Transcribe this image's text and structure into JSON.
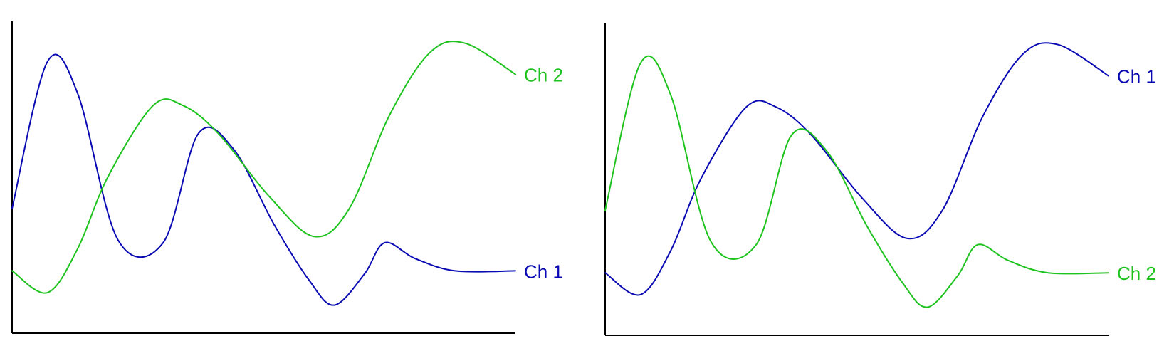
{
  "colors": {
    "ch1": "#0a0ab4",
    "ch2": "#1ec31e",
    "axis": "#000000"
  },
  "chart_data": [
    {
      "type": "line",
      "xlim": [
        0,
        100
      ],
      "ylim": [
        0,
        100
      ],
      "series": [
        {
          "name": "Ch 1",
          "color_key": "ch1",
          "points": [
            [
              0,
              40
            ],
            [
              7,
              87
            ],
            [
              13,
              77
            ],
            [
              21,
              30
            ],
            [
              30,
              29
            ],
            [
              37,
              64
            ],
            [
              44,
              59
            ],
            [
              52,
              35
            ],
            [
              59,
              17
            ],
            [
              64,
              9
            ],
            [
              70,
              19
            ],
            [
              74,
              29
            ],
            [
              80,
              24
            ],
            [
              88,
              20
            ],
            [
              100,
              20
            ]
          ]
        },
        {
          "name": "Ch 2",
          "color_key": "ch2",
          "points": [
            [
              0,
              20
            ],
            [
              7,
              13
            ],
            [
              13,
              27
            ],
            [
              19,
              50
            ],
            [
              28,
              73
            ],
            [
              34,
              73
            ],
            [
              41,
              64
            ],
            [
              51,
              44
            ],
            [
              60,
              31
            ],
            [
              67,
              40
            ],
            [
              75,
              70
            ],
            [
              83,
              90
            ],
            [
              90,
              93
            ],
            [
              100,
              83
            ]
          ]
        }
      ]
    },
    {
      "type": "line",
      "xlim": [
        0,
        100
      ],
      "ylim": [
        0,
        100
      ],
      "series": [
        {
          "name": "Ch 1",
          "color_key": "ch1",
          "points": [
            [
              0,
              20
            ],
            [
              7,
              13
            ],
            [
              13,
              27
            ],
            [
              19,
              50
            ],
            [
              28,
              73
            ],
            [
              34,
              73
            ],
            [
              41,
              64
            ],
            [
              51,
              44
            ],
            [
              60,
              31
            ],
            [
              67,
              40
            ],
            [
              75,
              70
            ],
            [
              83,
              90
            ],
            [
              90,
              93
            ],
            [
              100,
              83
            ]
          ]
        },
        {
          "name": "Ch 2",
          "color_key": "ch2",
          "points": [
            [
              0,
              40
            ],
            [
              7,
              87
            ],
            [
              13,
              77
            ],
            [
              21,
              30
            ],
            [
              30,
              29
            ],
            [
              37,
              64
            ],
            [
              44,
              59
            ],
            [
              52,
              35
            ],
            [
              59,
              17
            ],
            [
              64,
              9
            ],
            [
              70,
              19
            ],
            [
              74,
              29
            ],
            [
              80,
              24
            ],
            [
              88,
              20
            ],
            [
              100,
              20
            ]
          ]
        }
      ]
    }
  ]
}
